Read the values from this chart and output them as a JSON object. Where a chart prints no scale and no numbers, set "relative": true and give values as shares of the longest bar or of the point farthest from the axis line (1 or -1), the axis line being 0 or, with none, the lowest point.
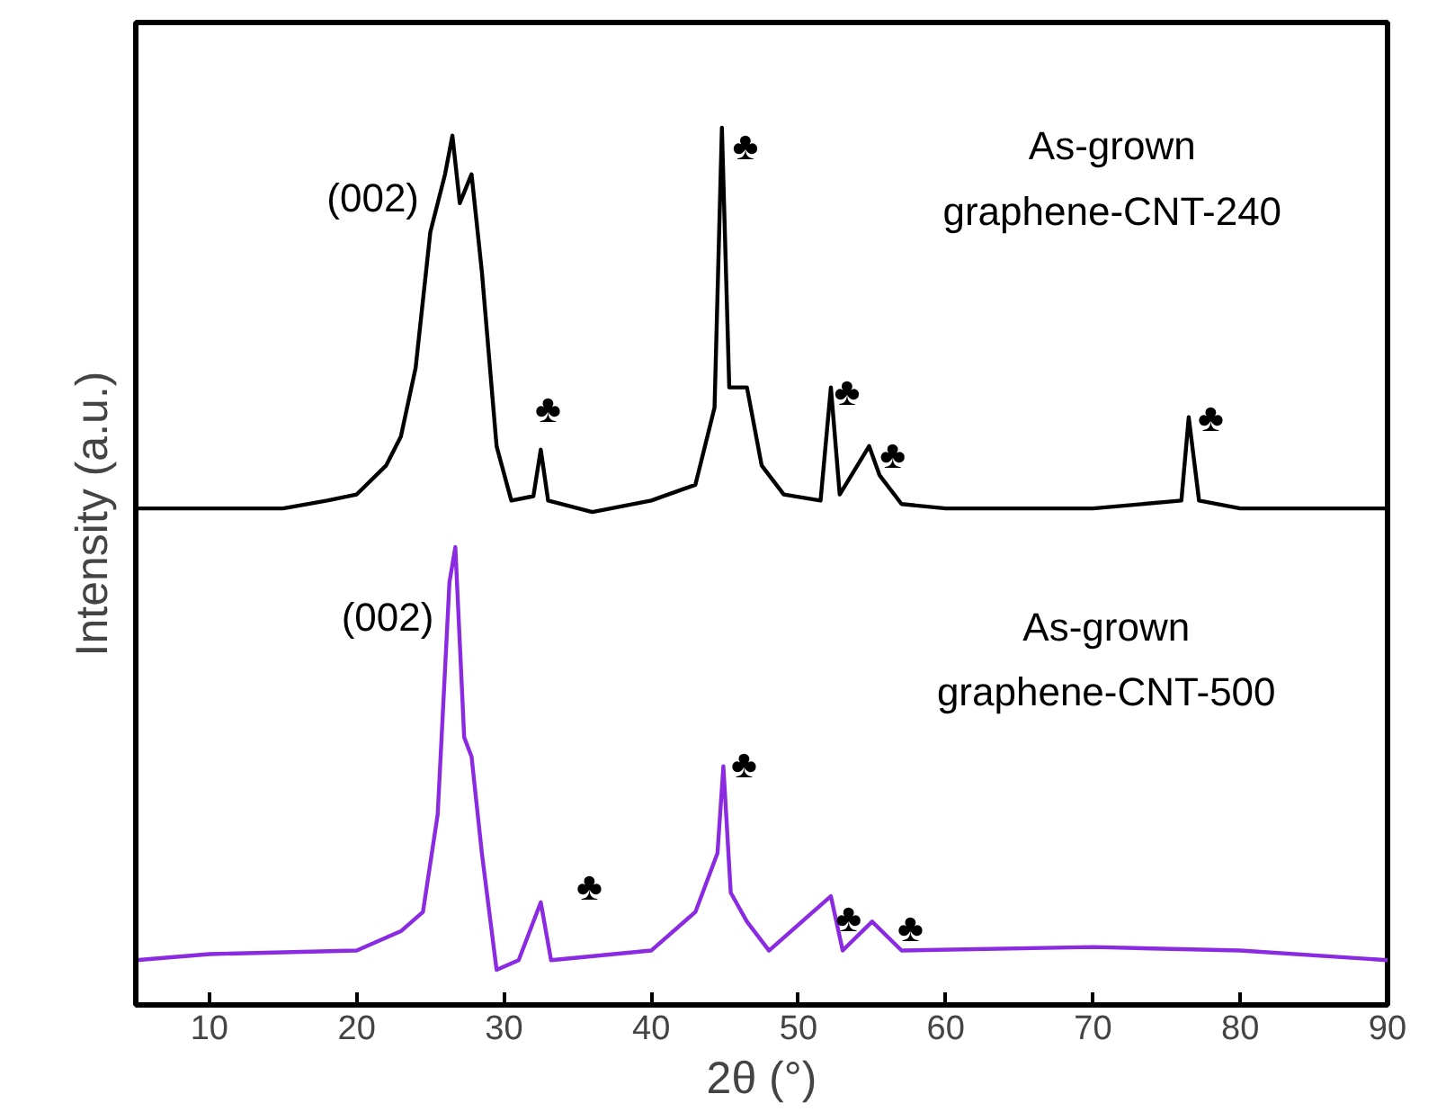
{
  "chart_data": {
    "type": "line",
    "relative": true,
    "xlabel": "2θ (°)",
    "ylabel": "Intensity (a.u.)",
    "xlim": [
      5,
      90
    ],
    "xticks": [
      10,
      20,
      30,
      40,
      50,
      60,
      70,
      80,
      90
    ],
    "grid": false,
    "marker": "none",
    "line_style": "solid",
    "series": [
      {
        "color": "#000000",
        "x": [
          5,
          15,
          18,
          20,
          22,
          23,
          24,
          25,
          26,
          26.5,
          27,
          27.8,
          28.5,
          29.5,
          30.5,
          32,
          32.5,
          33,
          36,
          40,
          43,
          44.3,
          44.8,
          45.3,
          46.5,
          47.5,
          49,
          51.5,
          52.2,
          52.8,
          54.8,
          55.5,
          57,
          60,
          70,
          76,
          76.5,
          77.2,
          80,
          90
        ],
        "values": [
          0.566,
          0.566,
          0.575,
          0.582,
          0.615,
          0.648,
          0.726,
          0.881,
          0.947,
          0.991,
          0.914,
          0.947,
          0.836,
          0.637,
          0.575,
          0.58,
          0.633,
          0.575,
          0.562,
          0.575,
          0.593,
          0.681,
          1.0,
          0.704,
          0.704,
          0.615,
          0.582,
          0.575,
          0.704,
          0.582,
          0.637,
          0.604,
          0.571,
          0.566,
          0.566,
          0.575,
          0.67,
          0.575,
          0.566,
          0.566
        ]
      },
      {
        "color": "#8a2be2",
        "x": [
          5,
          10,
          20,
          23,
          24.5,
          25.5,
          26.3,
          26.7,
          27.3,
          27.8,
          28.5,
          29.5,
          31,
          32.5,
          33.2,
          40,
          43,
          44.5,
          44.9,
          45.4,
          46.5,
          48,
          52.2,
          53,
          55,
          57,
          70,
          80,
          90
        ],
        "values": [
          0.051,
          0.058,
          0.062,
          0.084,
          0.106,
          0.217,
          0.482,
          0.522,
          0.305,
          0.283,
          0.173,
          0.04,
          0.051,
          0.117,
          0.051,
          0.062,
          0.106,
          0.173,
          0.272,
          0.128,
          0.095,
          0.062,
          0.124,
          0.062,
          0.095,
          0.062,
          0.066,
          0.062,
          0.051
        ]
      }
    ],
    "annotations": [
      "(002)",
      "As-grown\ngraphene-CNT-240",
      "♣",
      "♣",
      "♣",
      "♣",
      "♣",
      "(002)",
      "As-grown\ngraphene-CNT-500",
      "♣",
      "♣",
      "♣",
      "♣"
    ]
  }
}
